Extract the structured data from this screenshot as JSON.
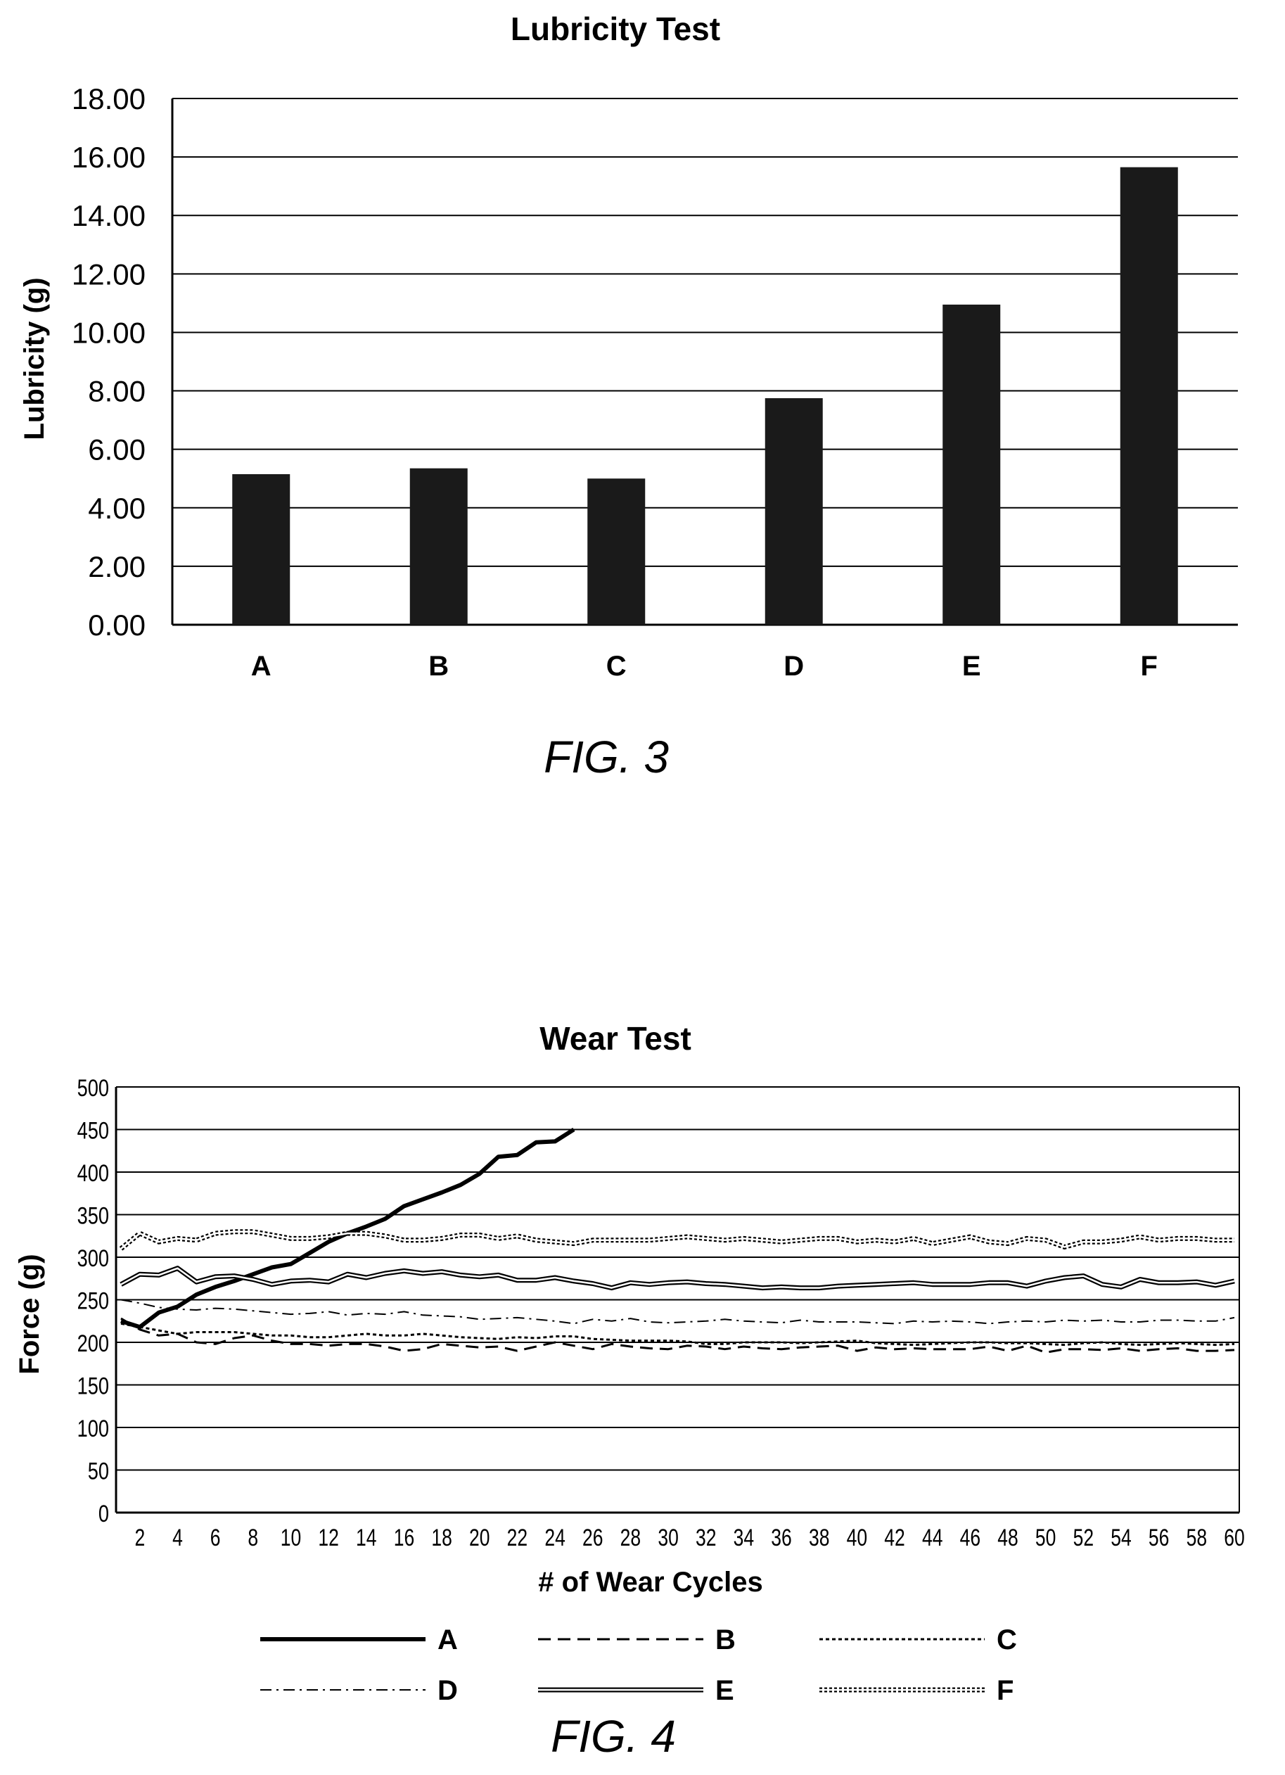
{
  "figure3": {
    "caption": "FIG.  3",
    "chart_data": {
      "type": "bar",
      "title": "Lubricity Test",
      "xlabel": "",
      "ylabel": "Lubricity (g)",
      "ylim": [
        0,
        18
      ],
      "y_ticks": [
        "0.00",
        "2.00",
        "4.00",
        "6.00",
        "8.00",
        "10.00",
        "12.00",
        "14.00",
        "16.00",
        "18.00"
      ],
      "categories": [
        "A",
        "B",
        "C",
        "D",
        "E",
        "F"
      ],
      "values": [
        5.15,
        5.35,
        5.0,
        7.75,
        10.95,
        15.65
      ],
      "grid": true,
      "legend": "none",
      "bar_color": "#1a1a1a"
    }
  },
  "figure4": {
    "caption": "FIG.  4",
    "chart_data": {
      "type": "line",
      "title": "Wear Test",
      "xlabel": "# of Wear Cycles",
      "ylabel": "Force (g)",
      "ylim": [
        0,
        500
      ],
      "xlim": [
        1,
        60
      ],
      "y_ticks": [
        "0",
        "50",
        "100",
        "150",
        "200",
        "250",
        "300",
        "350",
        "400",
        "450",
        "500"
      ],
      "x_ticks": [
        "2",
        "4",
        "6",
        "8",
        "10",
        "12",
        "14",
        "16",
        "18",
        "20",
        "22",
        "24",
        "26",
        "28",
        "30",
        "32",
        "34",
        "36",
        "38",
        "40",
        "42",
        "44",
        "46",
        "48",
        "50",
        "52",
        "54",
        "56",
        "58",
        "60"
      ],
      "grid": true,
      "legend": "bottom",
      "series": [
        {
          "name": "A",
          "style": "solid-thick",
          "values": [
            225,
            218,
            235,
            242,
            256,
            265,
            272,
            280,
            288,
            292,
            305,
            318,
            328,
            336,
            345,
            360,
            368,
            376,
            385,
            398,
            418,
            420,
            435,
            436,
            450
          ]
        },
        {
          "name": "B",
          "style": "dashed",
          "values": [
            228,
            215,
            208,
            210,
            200,
            198,
            205,
            208,
            202,
            198,
            198,
            196,
            198,
            198,
            195,
            190,
            192,
            198,
            196,
            194,
            195,
            190,
            195,
            200,
            196,
            192,
            198,
            195,
            193,
            192,
            196,
            195,
            192,
            195,
            193,
            192,
            194,
            195,
            196,
            190,
            194,
            192,
            193,
            192,
            192,
            192,
            195,
            190,
            196,
            188,
            192,
            192,
            191,
            193,
            190,
            192,
            193,
            190,
            190,
            191
          ]
        },
        {
          "name": "C",
          "style": "dotted",
          "values": [
            222,
            218,
            214,
            210,
            212,
            212,
            212,
            210,
            208,
            208,
            206,
            206,
            208,
            210,
            208,
            208,
            210,
            208,
            206,
            205,
            204,
            206,
            205,
            207,
            207,
            204,
            203,
            202,
            202,
            202,
            201,
            198,
            198,
            200,
            200,
            200,
            199,
            200,
            201,
            202,
            199,
            198,
            197,
            198,
            199,
            200,
            200,
            199,
            199,
            198,
            197,
            199,
            200,
            198,
            197,
            198,
            199,
            198,
            197,
            198
          ]
        },
        {
          "name": "D",
          "style": "dash-dot",
          "values": [
            250,
            246,
            241,
            239,
            238,
            240,
            239,
            237,
            235,
            233,
            234,
            236,
            232,
            234,
            233,
            236,
            232,
            231,
            230,
            227,
            228,
            229,
            227,
            225,
            222,
            227,
            225,
            228,
            224,
            223,
            224,
            225,
            227,
            225,
            224,
            223,
            226,
            224,
            224,
            224,
            223,
            222,
            225,
            224,
            225,
            224,
            222,
            224,
            225,
            224,
            226,
            225,
            226,
            224,
            224,
            226,
            226,
            225,
            225,
            229
          ]
        },
        {
          "name": "E",
          "style": "double",
          "values": [
            268,
            280,
            279,
            287,
            271,
            277,
            278,
            274,
            268,
            272,
            273,
            271,
            280,
            276,
            281,
            284,
            281,
            283,
            279,
            277,
            279,
            273,
            273,
            276,
            272,
            269,
            264,
            270,
            268,
            270,
            271,
            269,
            268,
            266,
            264,
            265,
            264,
            264,
            266,
            267,
            268,
            269,
            270,
            268,
            268,
            268,
            270,
            270,
            266,
            272,
            276,
            278,
            268,
            265,
            274,
            270,
            270,
            271,
            267,
            272
          ]
        },
        {
          "name": "F",
          "style": "hollow-dotted",
          "values": [
            310,
            328,
            318,
            322,
            320,
            328,
            330,
            330,
            326,
            322,
            322,
            324,
            328,
            328,
            325,
            320,
            320,
            322,
            326,
            326,
            322,
            325,
            320,
            318,
            316,
            320,
            320,
            320,
            320,
            322,
            324,
            322,
            320,
            322,
            320,
            318,
            320,
            322,
            322,
            318,
            320,
            318,
            322,
            316,
            320,
            324,
            318,
            316,
            322,
            320,
            312,
            318,
            318,
            320,
            324,
            320,
            322,
            322,
            320,
            320
          ]
        }
      ]
    }
  }
}
